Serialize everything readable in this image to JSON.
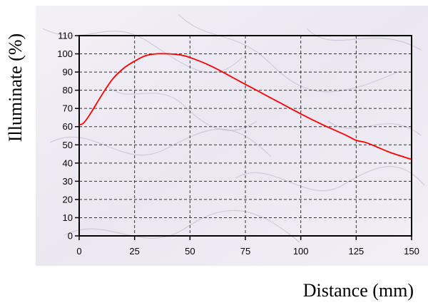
{
  "chart_data": {
    "type": "line",
    "title": "",
    "xlabel": "Distance (mm)",
    "ylabel": "Illuminate (%)",
    "xlim": [
      0,
      150
    ],
    "ylim": [
      0,
      110
    ],
    "x_ticks": [
      0,
      25,
      50,
      75,
      100,
      125,
      150
    ],
    "y_ticks": [
      0,
      10,
      20,
      30,
      40,
      50,
      60,
      70,
      80,
      90,
      100,
      110
    ],
    "grid": true,
    "legend": "none",
    "series": [
      {
        "color": "#ff0000",
        "x": [
          0,
          2,
          5,
          10,
          15,
          20,
          25,
          30,
          35,
          40,
          45,
          50,
          60,
          70,
          80,
          90,
          100,
          110,
          120,
          125,
          130,
          140,
          150
        ],
        "y": [
          61,
          62,
          67,
          77,
          86,
          92,
          96,
          99,
          100,
          100,
          99.5,
          98,
          93,
          86.5,
          80,
          73.5,
          67,
          61,
          55.5,
          52.5,
          51,
          46,
          42
        ]
      }
    ]
  }
}
